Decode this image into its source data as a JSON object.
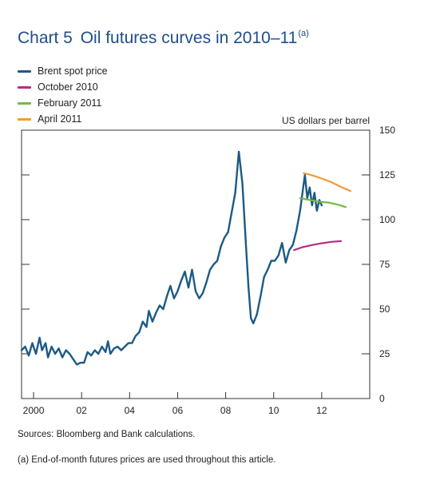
{
  "chart_data": {
    "type": "line",
    "title_number": "Chart 5",
    "title": "Oil futures curves in 2010–11",
    "title_note": "(a)",
    "ylabel": "US dollars per barrel",
    "xlabel": "",
    "ylim": [
      0,
      150
    ],
    "xlim": [
      1999.5,
      2014.0
    ],
    "yticks": [
      0,
      25,
      50,
      75,
      100,
      125,
      150
    ],
    "xticks": [
      {
        "value": 2000,
        "label": "2000"
      },
      {
        "value": 2002,
        "label": "02"
      },
      {
        "value": 2004,
        "label": "04"
      },
      {
        "value": 2006,
        "label": "06"
      },
      {
        "value": 2008,
        "label": "08"
      },
      {
        "value": 2010,
        "label": "10"
      },
      {
        "value": 2012,
        "label": "12"
      }
    ],
    "grid": false,
    "legend_position": "top-left",
    "series": [
      {
        "name": "Brent spot price",
        "color": "#1c5a85",
        "x": [
          1999.5,
          1999.65,
          1999.8,
          1999.95,
          2000.1,
          2000.25,
          2000.35,
          2000.5,
          2000.6,
          2000.75,
          2000.9,
          2001.05,
          2001.2,
          2001.35,
          2001.5,
          2001.65,
          2001.8,
          2001.95,
          2002.1,
          2002.25,
          2002.4,
          2002.55,
          2002.7,
          2002.85,
          2003.0,
          2003.1,
          2003.2,
          2003.35,
          2003.5,
          2003.65,
          2003.8,
          2003.95,
          2004.1,
          2004.25,
          2004.4,
          2004.55,
          2004.7,
          2004.8,
          2004.95,
          2005.1,
          2005.25,
          2005.4,
          2005.55,
          2005.7,
          2005.85,
          2006.0,
          2006.15,
          2006.3,
          2006.45,
          2006.6,
          2006.75,
          2006.9,
          2007.05,
          2007.2,
          2007.35,
          2007.5,
          2007.65,
          2007.8,
          2007.95,
          2008.1,
          2008.25,
          2008.4,
          2008.55,
          2008.7,
          2008.85,
          2008.95,
          2009.05,
          2009.15,
          2009.3,
          2009.45,
          2009.6,
          2009.75,
          2009.9,
          2010.05,
          2010.2,
          2010.35,
          2010.5,
          2010.65,
          2010.8,
          2010.95,
          2011.1,
          2011.2,
          2011.3,
          2011.4,
          2011.5,
          2011.6,
          2011.7,
          2011.8,
          2011.9,
          2012.0
        ],
        "values": [
          27,
          29,
          24,
          31,
          25,
          34,
          27,
          31,
          23,
          29,
          25,
          28,
          23,
          27,
          25,
          22,
          19,
          20,
          20,
          26,
          24,
          27,
          25,
          29,
          26,
          32,
          25,
          28,
          29,
          27,
          29,
          31,
          31,
          35,
          37,
          43,
          40,
          49,
          43,
          48,
          52,
          50,
          57,
          63,
          56,
          60,
          66,
          71,
          62,
          72,
          60,
          56,
          59,
          65,
          72,
          75,
          77,
          85,
          90,
          93,
          104,
          115,
          138,
          120,
          85,
          62,
          45,
          42,
          47,
          57,
          68,
          72,
          77,
          77,
          80,
          87,
          76,
          83,
          86,
          94,
          105,
          115,
          125,
          112,
          118,
          108,
          115,
          105,
          111,
          108
        ]
      },
      {
        "name": "October 2010",
        "color": "#b32e85",
        "x": [
          2010.85,
          2011.2,
          2011.6,
          2012.0,
          2012.4,
          2012.8
        ],
        "values": [
          83,
          84.6,
          85.8,
          86.8,
          87.6,
          88
        ]
      },
      {
        "name": "February 2011",
        "color": "#74b845",
        "x": [
          2011.1,
          2011.5,
          2011.9,
          2012.3,
          2012.7,
          2013.0
        ],
        "values": [
          112,
          111,
          110,
          109.5,
          108.3,
          107
        ]
      },
      {
        "name": "April 2011",
        "color": "#f09a37",
        "x": [
          2011.25,
          2011.6,
          2012.0,
          2012.4,
          2012.8,
          2013.2
        ],
        "values": [
          126,
          124.8,
          123,
          121,
          118.3,
          116
        ]
      }
    ]
  },
  "sources": "Sources:  Bloomberg and Bank calculations.",
  "footnote": "(a)  End-of-month futures prices are used throughout this article."
}
